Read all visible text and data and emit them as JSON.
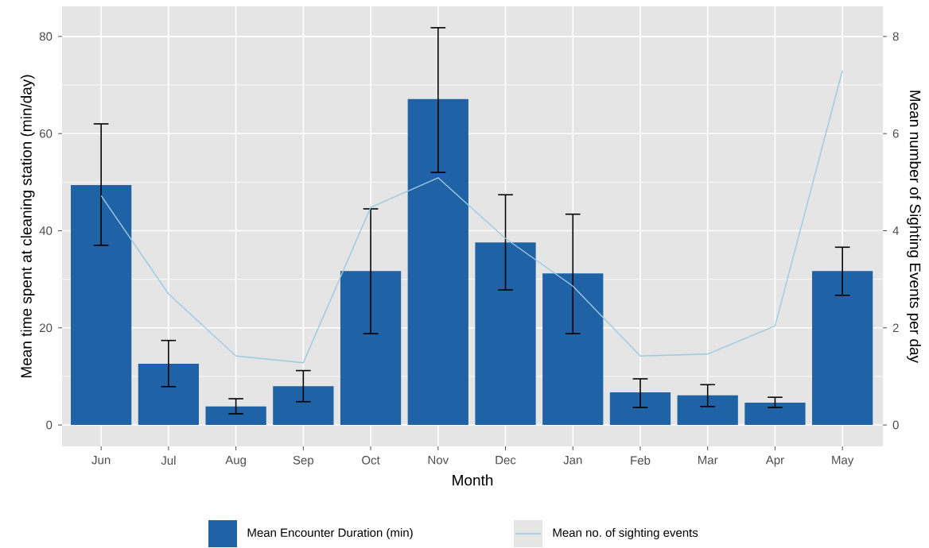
{
  "chart_data": {
    "type": "bar",
    "xlabel": "Month",
    "ylabel": "Mean time spent at cleaning station (min/day)",
    "y2label": "Mean number of Sighting Events per day",
    "categories": [
      "Jun",
      "Jul",
      "Aug",
      "Sep",
      "Oct",
      "Nov",
      "Dec",
      "Jan",
      "Feb",
      "Mar",
      "Apr",
      "May"
    ],
    "series": [
      {
        "name": "Mean Encounter Duration (min)",
        "color": "#1f62a5",
        "values": [
          49.4,
          12.6,
          3.8,
          8.0,
          31.7,
          67.1,
          37.6,
          31.2,
          6.7,
          6.1,
          4.6,
          31.7
        ],
        "errors": [
          [
            37.0,
            62.0
          ],
          [
            7.9,
            17.4
          ],
          [
            2.3,
            5.4
          ],
          [
            4.8,
            11.2
          ],
          [
            18.8,
            44.5
          ],
          [
            52.0,
            81.8
          ],
          [
            27.8,
            47.4
          ],
          [
            18.8,
            43.4
          ],
          [
            3.6,
            9.5
          ],
          [
            3.8,
            8.3
          ],
          [
            3.6,
            5.7
          ],
          [
            26.7,
            36.6
          ]
        ]
      },
      {
        "name": "Mean no. of sighting events",
        "type": "line",
        "axis": "y2",
        "color": "#9ecae1",
        "values": [
          4.72,
          2.7,
          1.42,
          1.28,
          4.48,
          5.09,
          3.84,
          2.86,
          1.42,
          1.46,
          2.04,
          7.3
        ]
      }
    ],
    "ylim": [
      -4.4,
      86.2
    ],
    "yticks": [
      0,
      20,
      40,
      60,
      80
    ],
    "y2lim": [
      -0.44,
      8.62
    ],
    "y2ticks": [
      0,
      2,
      4,
      6,
      8
    ],
    "grid": true,
    "legend": "bottom"
  }
}
